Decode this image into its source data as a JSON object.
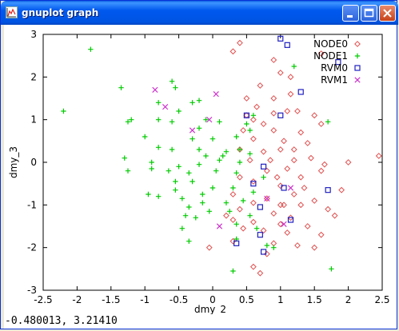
{
  "window": {
    "title": "gnuplot graph"
  },
  "status": {
    "coords": "-0.480013,  3.21410"
  },
  "chart_data": {
    "type": "scatter",
    "title": "",
    "xlabel": "dmy_2",
    "ylabel": "dmy_3",
    "xlim": [
      -2.5,
      2.5
    ],
    "ylim": [
      -3,
      3
    ],
    "x_ticks": [
      "-2.5",
      "-2",
      "-1.5",
      "-1",
      "-0.5",
      "0",
      "0.5",
      "1",
      "1.5",
      "2",
      "2.5"
    ],
    "y_ticks": [
      "3",
      "2",
      "1",
      "0",
      "-1",
      "-2",
      "-3"
    ],
    "grid": false,
    "legend_position": "top-right",
    "series": [
      {
        "name": "NODE0",
        "marker": "diamond",
        "color": "#e05050",
        "points": [
          [
            0.4,
            2.8
          ],
          [
            0.3,
            2.6
          ],
          [
            0.9,
            2.4
          ],
          [
            1.6,
            2.55
          ],
          [
            1.0,
            2.1
          ],
          [
            1.15,
            2.0
          ],
          [
            0.7,
            1.8
          ],
          [
            1.15,
            1.6
          ],
          [
            0.9,
            1.5
          ],
          [
            0.5,
            1.5
          ],
          [
            0.65,
            1.3
          ],
          [
            1.1,
            1.2
          ],
          [
            1.25,
            1.2
          ],
          [
            0.9,
            1.15
          ],
          [
            1.5,
            1.1
          ],
          [
            0.6,
            1.0
          ],
          [
            0.75,
            0.9
          ],
          [
            0.45,
            0.75
          ],
          [
            0.9,
            0.75
          ],
          [
            1.3,
            0.7
          ],
          [
            1.6,
            0.9
          ],
          [
            0.6,
            0.55
          ],
          [
            1.05,
            0.5
          ],
          [
            1.4,
            0.45
          ],
          [
            1.2,
            0.3
          ],
          [
            0.4,
            0.3
          ],
          [
            0.75,
            0.25
          ],
          [
            1.0,
            0.3
          ],
          [
            1.45,
            0.1
          ],
          [
            1.2,
            0.05
          ],
          [
            0.55,
            0.05
          ],
          [
            0.85,
            0.05
          ],
          [
            2.0,
            0.0
          ],
          [
            2.45,
            0.15
          ],
          [
            1.65,
            -0.05
          ],
          [
            1.1,
            -0.15
          ],
          [
            0.8,
            -0.2
          ],
          [
            0.4,
            -0.35
          ],
          [
            1.3,
            -0.35
          ],
          [
            1.6,
            -0.2
          ],
          [
            0.6,
            -0.45
          ],
          [
            1.0,
            -0.55
          ],
          [
            1.9,
            -0.65
          ],
          [
            1.2,
            -0.75
          ],
          [
            0.3,
            -0.75
          ],
          [
            0.8,
            -0.85
          ],
          [
            1.5,
            -0.9
          ],
          [
            0.6,
            -0.95
          ],
          [
            1.05,
            -1.0
          ],
          [
            1.3,
            -1.0
          ],
          [
            0.4,
            -1.1
          ],
          [
            0.9,
            -1.2
          ],
          [
            1.7,
            -1.1
          ],
          [
            1.8,
            -1.25
          ],
          [
            1.15,
            -1.3
          ],
          [
            0.3,
            -1.35
          ],
          [
            0.6,
            -1.4
          ],
          [
            1.0,
            -1.45
          ],
          [
            1.4,
            -1.5
          ],
          [
            0.45,
            -1.55
          ],
          [
            0.75,
            -1.6
          ],
          [
            1.1,
            -1.65
          ],
          [
            1.6,
            -1.7
          ],
          [
            0.3,
            -1.85
          ],
          [
            0.9,
            -1.9
          ],
          [
            1.25,
            -1.95
          ],
          [
            -0.05,
            -2.0
          ],
          [
            1.5,
            -2.0
          ],
          [
            0.8,
            -2.15
          ],
          [
            0.6,
            -2.45
          ],
          [
            0.7,
            -2.6
          ],
          [
            1.0,
            -1.0
          ],
          [
            0.2,
            -1.25
          ],
          [
            1.35,
            -0.6
          ],
          [
            0.5,
            1.1
          ],
          [
            0.95,
            -0.35
          ]
        ]
      },
      {
        "name": "NODE1",
        "marker": "plus",
        "color": "#00cc00",
        "points": [
          [
            -1.8,
            2.65
          ],
          [
            -1.35,
            1.75
          ],
          [
            -0.6,
            1.9
          ],
          [
            -0.55,
            1.75
          ],
          [
            -0.8,
            1.4
          ],
          [
            -0.3,
            1.4
          ],
          [
            -0.2,
            1.45
          ],
          [
            -0.5,
            1.2
          ],
          [
            -1.2,
            1.0
          ],
          [
            -1.25,
            0.95
          ],
          [
            -0.8,
            1.0
          ],
          [
            -0.6,
            0.95
          ],
          [
            -2.2,
            1.2
          ],
          [
            -0.1,
            1.0
          ],
          [
            0.1,
            0.95
          ],
          [
            0.5,
            0.9
          ],
          [
            0.6,
            1.1
          ],
          [
            -0.2,
            0.8
          ],
          [
            -1.0,
            0.6
          ],
          [
            -0.3,
            0.55
          ],
          [
            0.0,
            0.55
          ],
          [
            0.35,
            0.6
          ],
          [
            -0.8,
            0.35
          ],
          [
            -0.6,
            0.3
          ],
          [
            -0.2,
            0.3
          ],
          [
            0.2,
            0.25
          ],
          [
            0.4,
            0.3
          ],
          [
            -0.1,
            0.15
          ],
          [
            0.15,
            0.15
          ],
          [
            0.55,
            0.2
          ],
          [
            -1.3,
            0.1
          ],
          [
            -0.9,
            0.0
          ],
          [
            -0.5,
            -0.1
          ],
          [
            -0.2,
            -0.05
          ],
          [
            0.1,
            0.05
          ],
          [
            0.4,
            0.0
          ],
          [
            -1.25,
            -0.2
          ],
          [
            -0.9,
            -0.15
          ],
          [
            -0.65,
            -0.2
          ],
          [
            -0.35,
            -0.25
          ],
          [
            0.05,
            -0.2
          ],
          [
            0.35,
            -0.25
          ],
          [
            -0.3,
            -0.45
          ],
          [
            0.0,
            -0.6
          ],
          [
            0.3,
            -0.6
          ],
          [
            0.6,
            -0.7
          ],
          [
            -0.55,
            -0.65
          ],
          [
            -0.15,
            -0.75
          ],
          [
            -0.95,
            -0.75
          ],
          [
            -0.8,
            -0.8
          ],
          [
            -0.45,
            -0.85
          ],
          [
            -0.15,
            -0.95
          ],
          [
            0.2,
            -0.95
          ],
          [
            0.45,
            -0.9
          ],
          [
            -0.35,
            -1.05
          ],
          [
            -0.05,
            -1.15
          ],
          [
            0.25,
            -1.15
          ],
          [
            -0.4,
            -1.25
          ],
          [
            -0.25,
            -1.3
          ],
          [
            0.55,
            -1.25
          ],
          [
            0.35,
            -1.45
          ],
          [
            -0.45,
            -1.55
          ],
          [
            0.65,
            -1.55
          ],
          [
            -0.35,
            -1.85
          ],
          [
            0.35,
            -1.8
          ],
          [
            0.8,
            -1.95
          ],
          [
            0.9,
            -2.0
          ],
          [
            1.2,
            2.25
          ],
          [
            1.7,
            0.95
          ],
          [
            0.55,
            0.75
          ],
          [
            0.3,
            -2.55
          ],
          [
            1.75,
            -2.5
          ],
          [
            -0.55,
            -0.45
          ],
          [
            0.75,
            -0.35
          ]
        ]
      },
      {
        "name": "RVM0",
        "marker": "square",
        "color": "#2020c0",
        "points": [
          [
            1.0,
            2.9
          ],
          [
            1.1,
            2.75
          ],
          [
            1.85,
            2.35
          ],
          [
            1.3,
            1.65
          ],
          [
            0.5,
            1.1
          ],
          [
            1.0,
            1.1
          ],
          [
            0.75,
            -0.1
          ],
          [
            0.6,
            -0.5
          ],
          [
            1.05,
            -0.6
          ],
          [
            1.7,
            -0.65
          ],
          [
            0.7,
            -1.05
          ],
          [
            1.15,
            -1.35
          ],
          [
            0.7,
            -1.7
          ],
          [
            0.35,
            -1.9
          ],
          [
            0.75,
            -2.1
          ]
        ]
      },
      {
        "name": "RVM1",
        "marker": "x",
        "color": "#cc33cc",
        "points": [
          [
            -0.85,
            1.7
          ],
          [
            -0.7,
            1.3
          ],
          [
            0.05,
            1.6
          ],
          [
            -0.05,
            1.0
          ],
          [
            -0.3,
            0.75
          ],
          [
            1.15,
            -0.6
          ],
          [
            0.8,
            -0.85
          ],
          [
            0.1,
            -1.5
          ],
          [
            1.05,
            -1.45
          ]
        ]
      }
    ]
  }
}
